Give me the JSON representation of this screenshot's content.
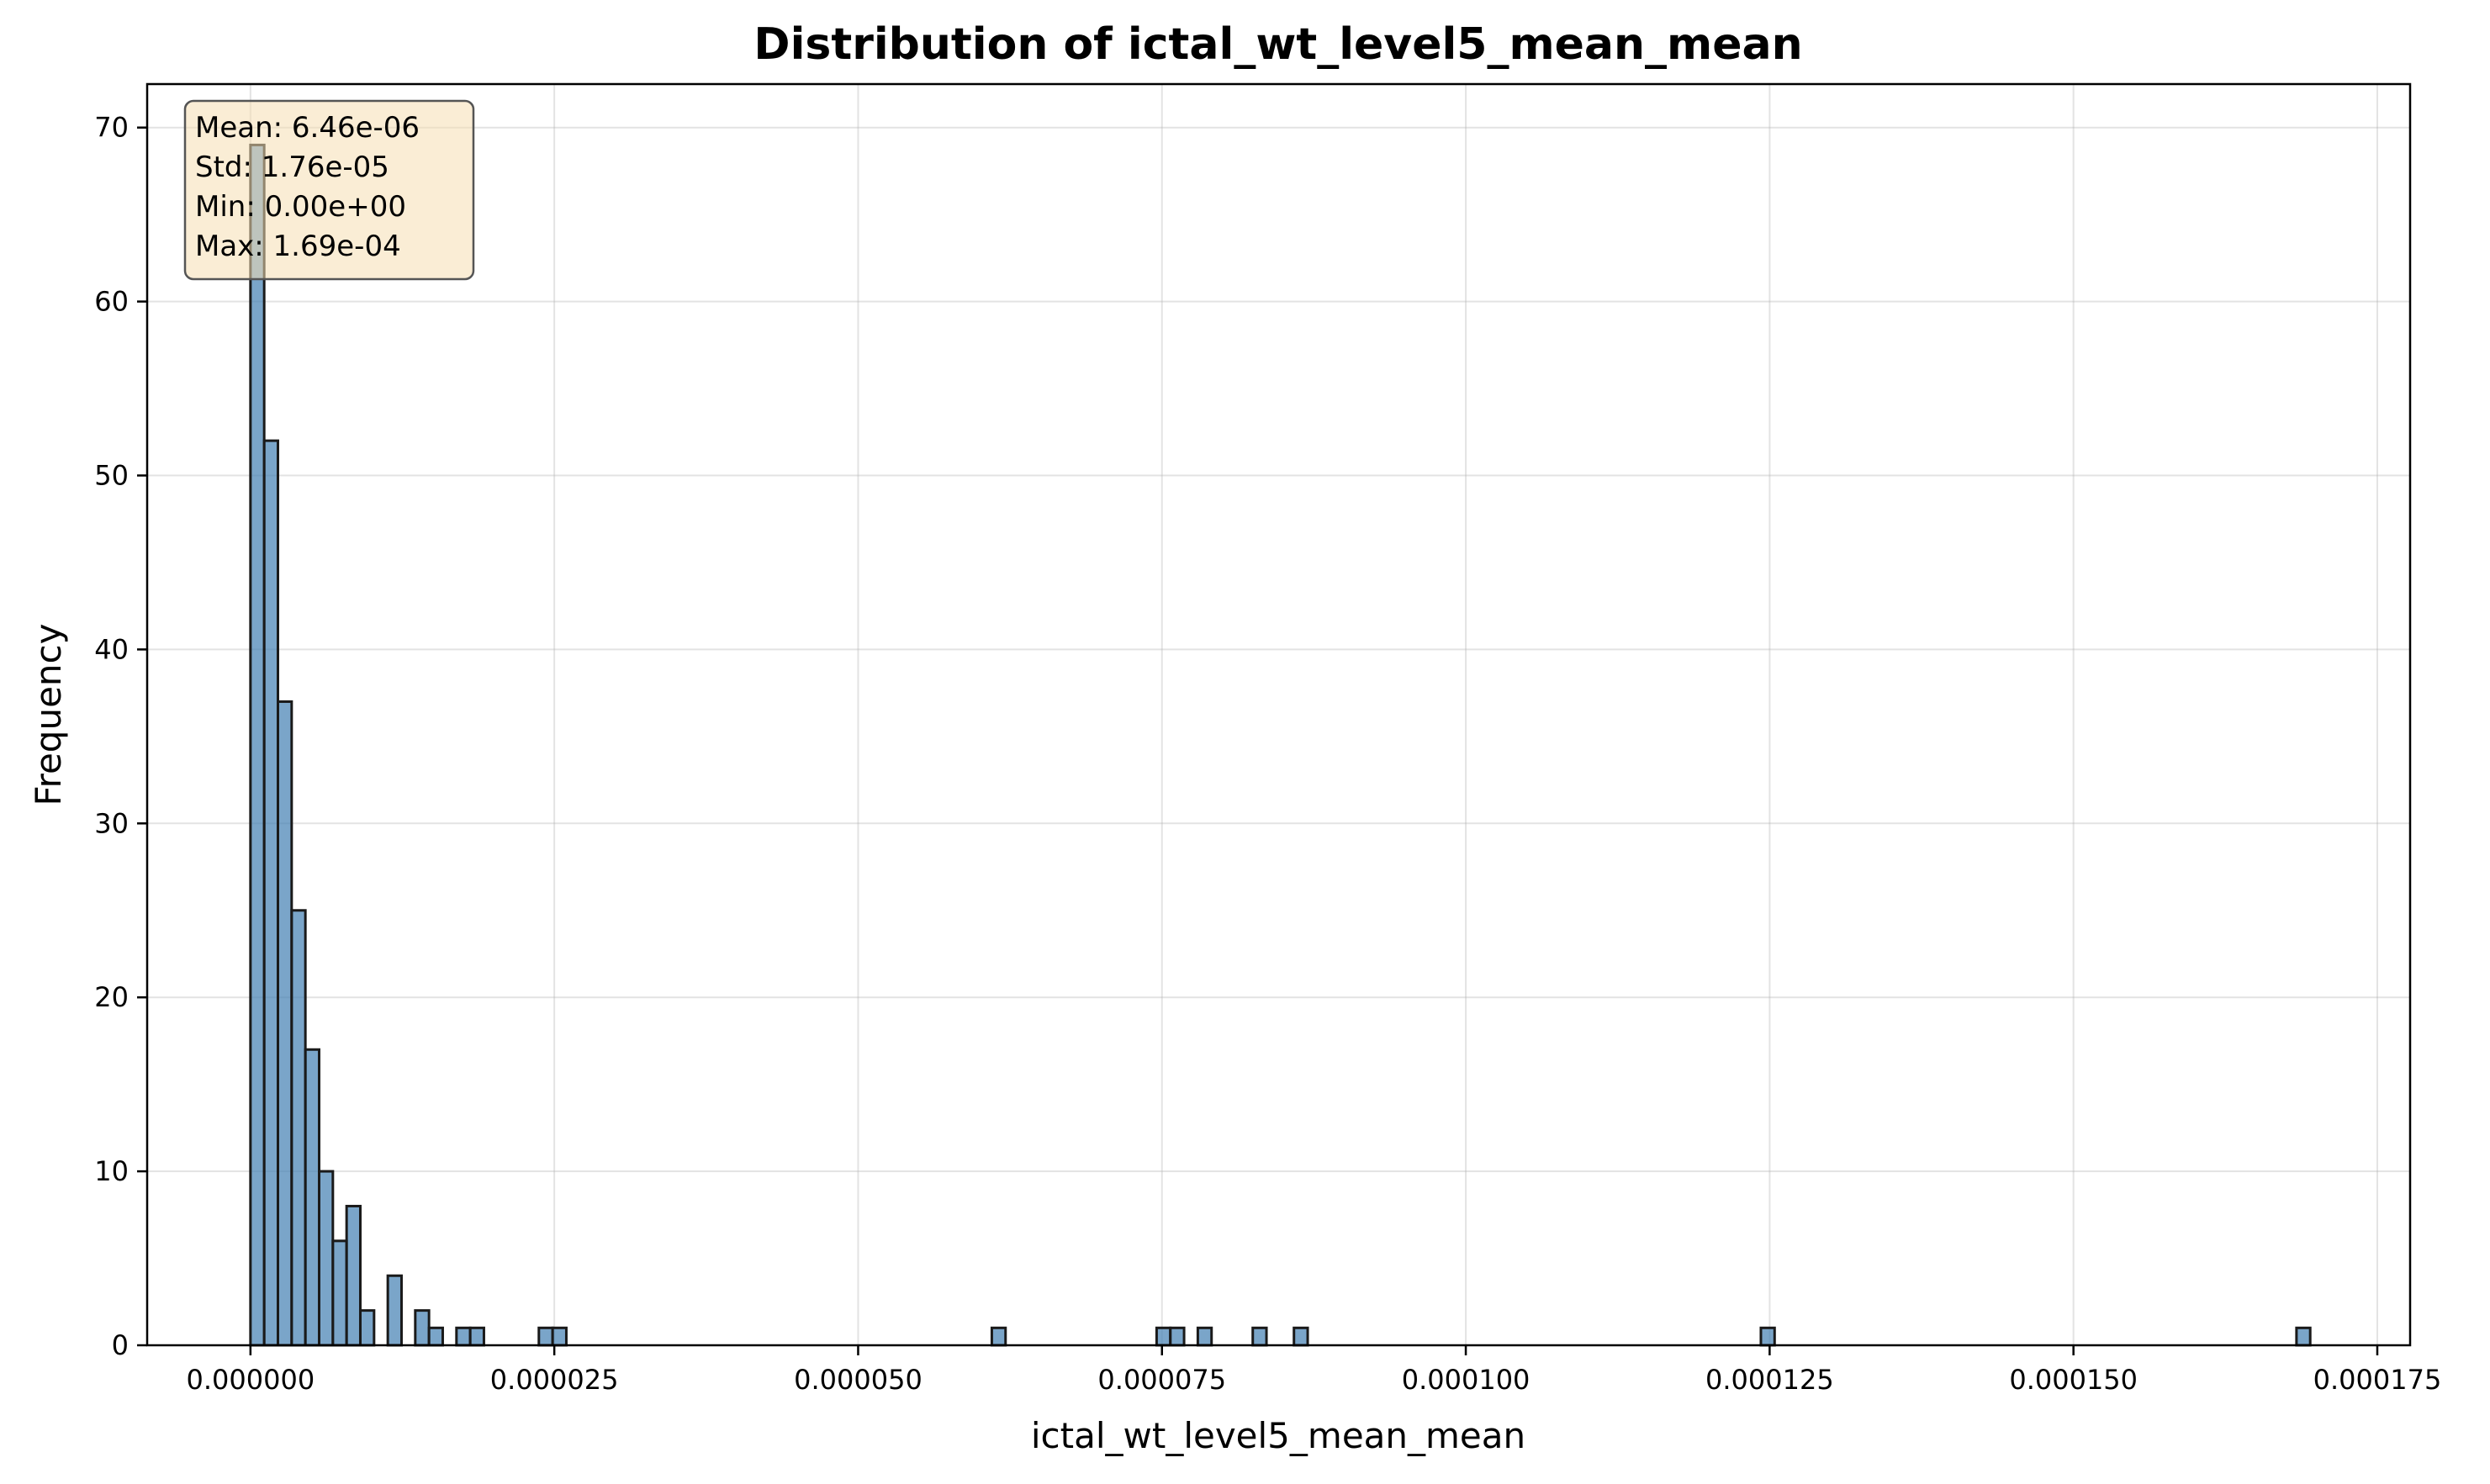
{
  "chart_data": {
    "type": "bar",
    "title": "Distribution of ictal_wt_level5_mean_mean",
    "xlabel": "ictal_wt_level5_mean_mean",
    "ylabel": "Frequency",
    "xlim": [
      -8.5e-06,
      0.0001777
    ],
    "ylim": [
      0,
      72.5
    ],
    "bin_width": 1.13e-06,
    "grid": true,
    "bar_color": "#4682b4",
    "bar_edge_color": "#1a1a1a",
    "x_ticks": [
      0,
      2.5e-05,
      5e-05,
      7.5e-05,
      0.0001,
      0.000125,
      0.00015,
      0.000175
    ],
    "x_tick_labels": [
      "0.000000",
      "0.000025",
      "0.000050",
      "0.000075",
      "0.000100",
      "0.000125",
      "0.000150",
      "0.000175"
    ],
    "y_ticks": [
      0,
      10,
      20,
      30,
      40,
      50,
      60,
      70
    ],
    "y_tick_labels": [
      "0",
      "10",
      "20",
      "30",
      "40",
      "50",
      "60",
      "70"
    ],
    "bins": [
      {
        "x": 0.0,
        "count": 69
      },
      {
        "x": 1.13e-06,
        "count": 52
      },
      {
        "x": 2.26e-06,
        "count": 37
      },
      {
        "x": 3.39e-06,
        "count": 25
      },
      {
        "x": 4.52e-06,
        "count": 17
      },
      {
        "x": 5.65e-06,
        "count": 10
      },
      {
        "x": 6.78e-06,
        "count": 6
      },
      {
        "x": 7.91e-06,
        "count": 8
      },
      {
        "x": 9.04e-06,
        "count": 2
      },
      {
        "x": 1.13e-05,
        "count": 4
      },
      {
        "x": 1.356e-05,
        "count": 2
      },
      {
        "x": 1.469e-05,
        "count": 1
      },
      {
        "x": 1.695e-05,
        "count": 1
      },
      {
        "x": 1.808e-05,
        "count": 1
      },
      {
        "x": 2.373e-05,
        "count": 1
      },
      {
        "x": 2.486e-05,
        "count": 1
      },
      {
        "x": 6.1e-05,
        "count": 1
      },
      {
        "x": 7.456e-05,
        "count": 1
      },
      {
        "x": 7.569e-05,
        "count": 1
      },
      {
        "x": 7.795e-05,
        "count": 1
      },
      {
        "x": 8.247e-05,
        "count": 1
      },
      {
        "x": 8.586e-05,
        "count": 1
      },
      {
        "x": 0.00012428,
        "count": 1
      },
      {
        "x": 0.00016835,
        "count": 1
      }
    ],
    "stats_box": {
      "lines": [
        "Mean: 6.46e-06",
        "Std: 1.76e-05",
        "Min: 0.00e+00",
        "Max: 1.69e-04"
      ],
      "placement": "top-left",
      "background": "#f5deb3"
    }
  }
}
